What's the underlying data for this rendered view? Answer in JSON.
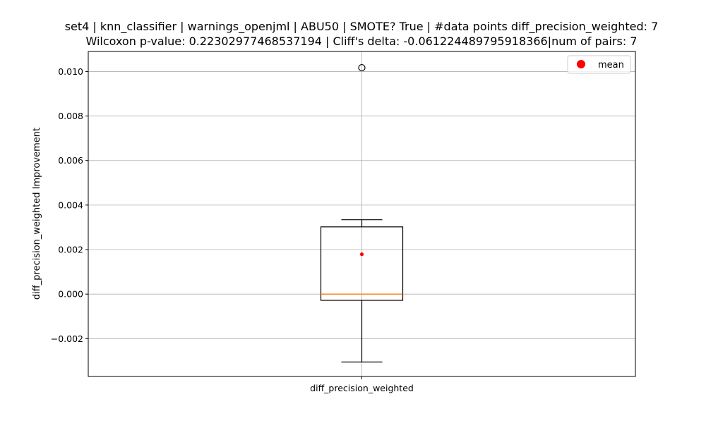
{
  "chart_data": {
    "type": "box",
    "title_line1": "set4 | knn_classifier | warnings_openjml | ABU50 | SMOTE? True | #data points diff_precision_weighted: 7",
    "title_line2": "Wilcoxon p-value: 0.22302977468537194 | Cliff's delta: -0.061224489795918366|num of pairs: 7",
    "ylabel": "diff_precision_weighted Improvement",
    "xlabel": "",
    "categories": [
      "diff_precision_weighted"
    ],
    "ylim": [
      -0.0037,
      0.0109
    ],
    "yticks": [
      -0.002,
      0.0,
      0.002,
      0.004,
      0.006,
      0.008,
      0.01
    ],
    "ytick_labels": [
      "−0.002",
      "0.000",
      "0.002",
      "0.004",
      "0.006",
      "0.008",
      "0.010"
    ],
    "grid": true,
    "box": {
      "whisker_low": -0.00305,
      "q1": -0.00028,
      "median": 0.0,
      "q3": 0.00302,
      "whisker_high": 0.00334,
      "mean": 0.00179,
      "outliers": [
        0.01017
      ]
    },
    "legend": {
      "placement": "top-right",
      "entries": [
        {
          "label": "mean",
          "color": "#ff0000"
        }
      ]
    },
    "colors": {
      "median": "#ff7f0e",
      "mean": "#ff0000",
      "box": "#000000",
      "grid": "#b0b0b0"
    }
  }
}
